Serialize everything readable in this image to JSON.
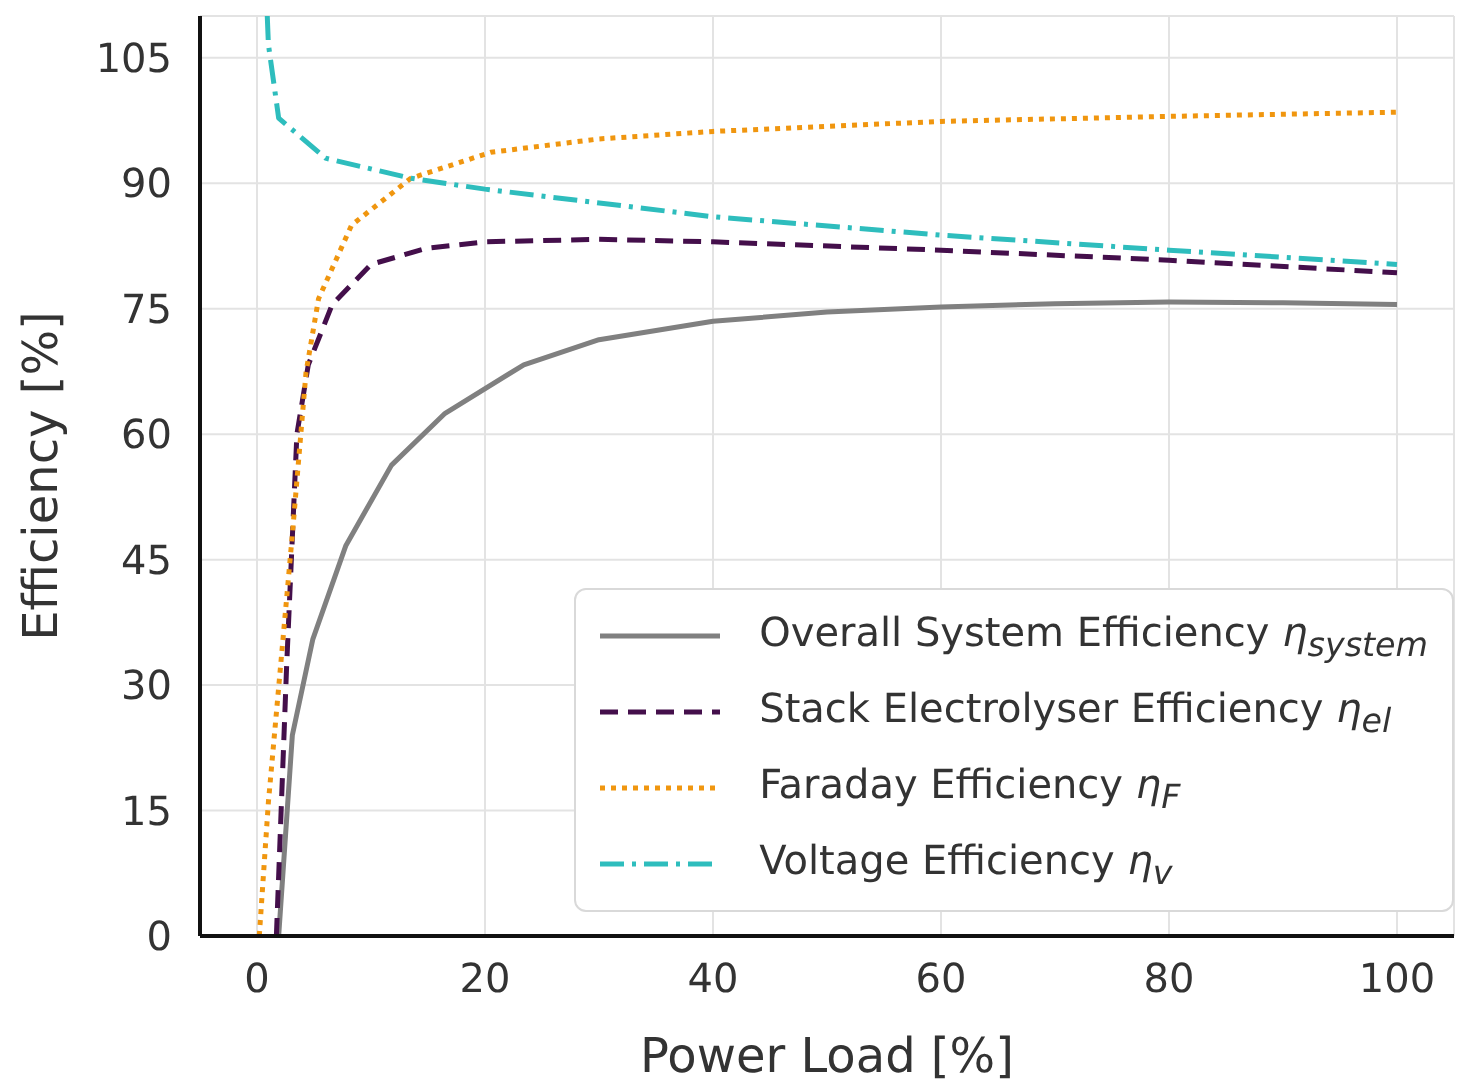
{
  "chart_data": {
    "type": "line",
    "xlabel": "Power Load [%]",
    "ylabel": "Efficiency [%]",
    "xlim": [
      -5,
      105
    ],
    "ylim": [
      0,
      110
    ],
    "xticks": [
      0,
      20,
      40,
      60,
      80,
      100
    ],
    "yticks": [
      0,
      15,
      30,
      45,
      60,
      75,
      90,
      105
    ],
    "grid": true,
    "legend": "bottom right",
    "marker": "none",
    "series": [
      {
        "name": "Overall System Efficiency η$_{system}$",
        "color": "#808080",
        "line_style": "solid",
        "x": [
          1.7,
          1.9,
          3.1,
          4.9,
          7.8,
          11.8,
          16.5,
          23.4,
          30,
          40,
          50,
          60,
          70,
          80,
          90,
          100
        ],
        "values": [
          0,
          0,
          24,
          35.5,
          46.7,
          56.3,
          62.5,
          68.3,
          71.3,
          73.5,
          74.6,
          75.2,
          75.6,
          75.8,
          75.7,
          75.5
        ]
      },
      {
        "name": "Stack Electrolyser Efficiency η$_{el}$",
        "color": "#440f4b",
        "line_style": "dashed",
        "x": [
          1.7,
          2.6,
          3.5,
          4.5,
          6.6,
          10,
          14.8,
          20,
          30,
          40,
          60,
          80,
          100
        ],
        "values": [
          0,
          32.3,
          60,
          68.3,
          75.5,
          80.3,
          82.2,
          83,
          83.3,
          83,
          82,
          80.8,
          79.3
        ]
      },
      {
        "name": "Faraday Efficiency η$_{F}$",
        "color": "#f0960f",
        "line_style": "dotted",
        "x": [
          0.2,
          1,
          3.1,
          4.3,
          5.4,
          8.3,
          13.5,
          20.5,
          30,
          40,
          60,
          80,
          100
        ],
        "values": [
          0,
          16,
          48,
          67.4,
          76.2,
          85,
          90.6,
          93.7,
          95.3,
          96.2,
          97.4,
          98,
          98.5
        ]
      },
      {
        "name": "Voltage Efficiency η$_{v}$",
        "color": "#2ebdbd",
        "line_style": "dashdot",
        "x": [
          0.9,
          1,
          1.9,
          6,
          13.5,
          20,
          40,
          60,
          80,
          100
        ],
        "values": [
          110,
          106.6,
          97.8,
          93,
          90.6,
          89.3,
          86,
          83.8,
          82,
          80.3
        ]
      }
    ]
  }
}
